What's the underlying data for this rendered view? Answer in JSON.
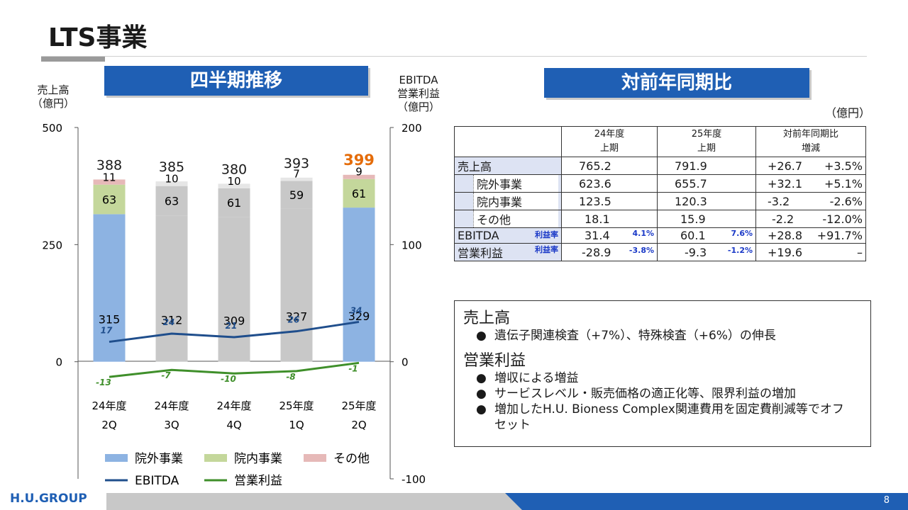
{
  "header": {
    "title": "LTS事業"
  },
  "left_banner": "四半期推移",
  "right_banner": "対前年同期比",
  "left_axis_caption": [
    "売上高",
    "（億円）"
  ],
  "right_axis_caption": [
    "EBITDA",
    "営業利益",
    "（億円）"
  ],
  "table_unit": "（億円）",
  "chart_data": {
    "type": "bar",
    "categories": [
      [
        "24年度",
        "2Q"
      ],
      [
        "24年度",
        "3Q"
      ],
      [
        "24年度",
        "4Q"
      ],
      [
        "25年度",
        "1Q"
      ],
      [
        "25年度",
        "2Q"
      ]
    ],
    "left_axis": {
      "ticks": [
        "500",
        "250",
        "0"
      ],
      "ylim": [
        -250,
        500
      ]
    },
    "right_axis": {
      "ticks": [
        "200",
        "100",
        "0",
        "-100"
      ],
      "ylim": [
        -100,
        200
      ]
    },
    "stacked_series": [
      {
        "name": "院外事業",
        "color": "#8db3e2",
        "values": [
          315,
          312,
          309,
          327,
          329
        ]
      },
      {
        "name": "院内事業",
        "color": "#c4d79b",
        "values": [
          63,
          63,
          61,
          59,
          61
        ]
      },
      {
        "name": "その他",
        "color": "#e6b9b8",
        "values": [
          11,
          10,
          10,
          7,
          9
        ]
      }
    ],
    "totals": [
      "388",
      "385",
      "380",
      "393",
      "399"
    ],
    "highlight_color": "#e46c0a",
    "gray_bar_color": "#c8c8c8",
    "gray_top_color": "#e6e6e6",
    "line_series": [
      {
        "name": "EBITDA",
        "color": "#1f4e8c",
        "values": [
          17,
          24,
          21,
          26,
          34
        ]
      },
      {
        "name": "営業利益",
        "color": "#3f8f2a",
        "values": [
          -13,
          -7,
          -10,
          -8,
          -1
        ]
      }
    ]
  },
  "table": {
    "header": {
      "col1": [
        "24年度",
        "上期"
      ],
      "col2": [
        "25年度",
        "上期"
      ],
      "col3": [
        "対前年同期比",
        "増減"
      ]
    },
    "rows": [
      {
        "label": "売上高",
        "v1": "765.2",
        "v2": "791.9",
        "diff": "+26.7",
        "pct": "+3.5%"
      },
      {
        "label": "院外事業",
        "v1": "623.6",
        "v2": "655.7",
        "diff": "+32.1",
        "pct": "+5.1%"
      },
      {
        "label": "院内事業",
        "v1": "123.5",
        "v2": "120.3",
        "diff": "-3.2",
        "pct": "-2.6%"
      },
      {
        "label": "その他",
        "v1": "18.1",
        "v2": "15.9",
        "diff": "-2.2",
        "pct": "-12.0%"
      },
      {
        "label": "EBITDA",
        "rate_label": "利益率",
        "v1": "31.4",
        "r1": "4.1%",
        "v2": "60.1",
        "r2": "7.6%",
        "diff": "+28.8",
        "pct": "+91.7%"
      },
      {
        "label": "営業利益",
        "rate_label": "利益率",
        "v1": "-28.9",
        "r1": "-3.8%",
        "v2": "-9.3",
        "r2": "-1.2%",
        "diff": "+19.6",
        "pct": "–"
      }
    ]
  },
  "summary": {
    "h1": "売上高",
    "b1": "遺伝子関連検査（+7%）、特殊検査（+6%）の伸長",
    "h2": "営業利益",
    "b2": "増収による増益",
    "b3": "サービスレベル・販売価格の適正化等、限界利益の増加",
    "b4": "増加したH.U. Bioness Complex関連費用を固定費削減等でオフセット",
    "bullet": "●"
  },
  "footer": {
    "logo": "H.U.GROUP",
    "page": "8"
  }
}
